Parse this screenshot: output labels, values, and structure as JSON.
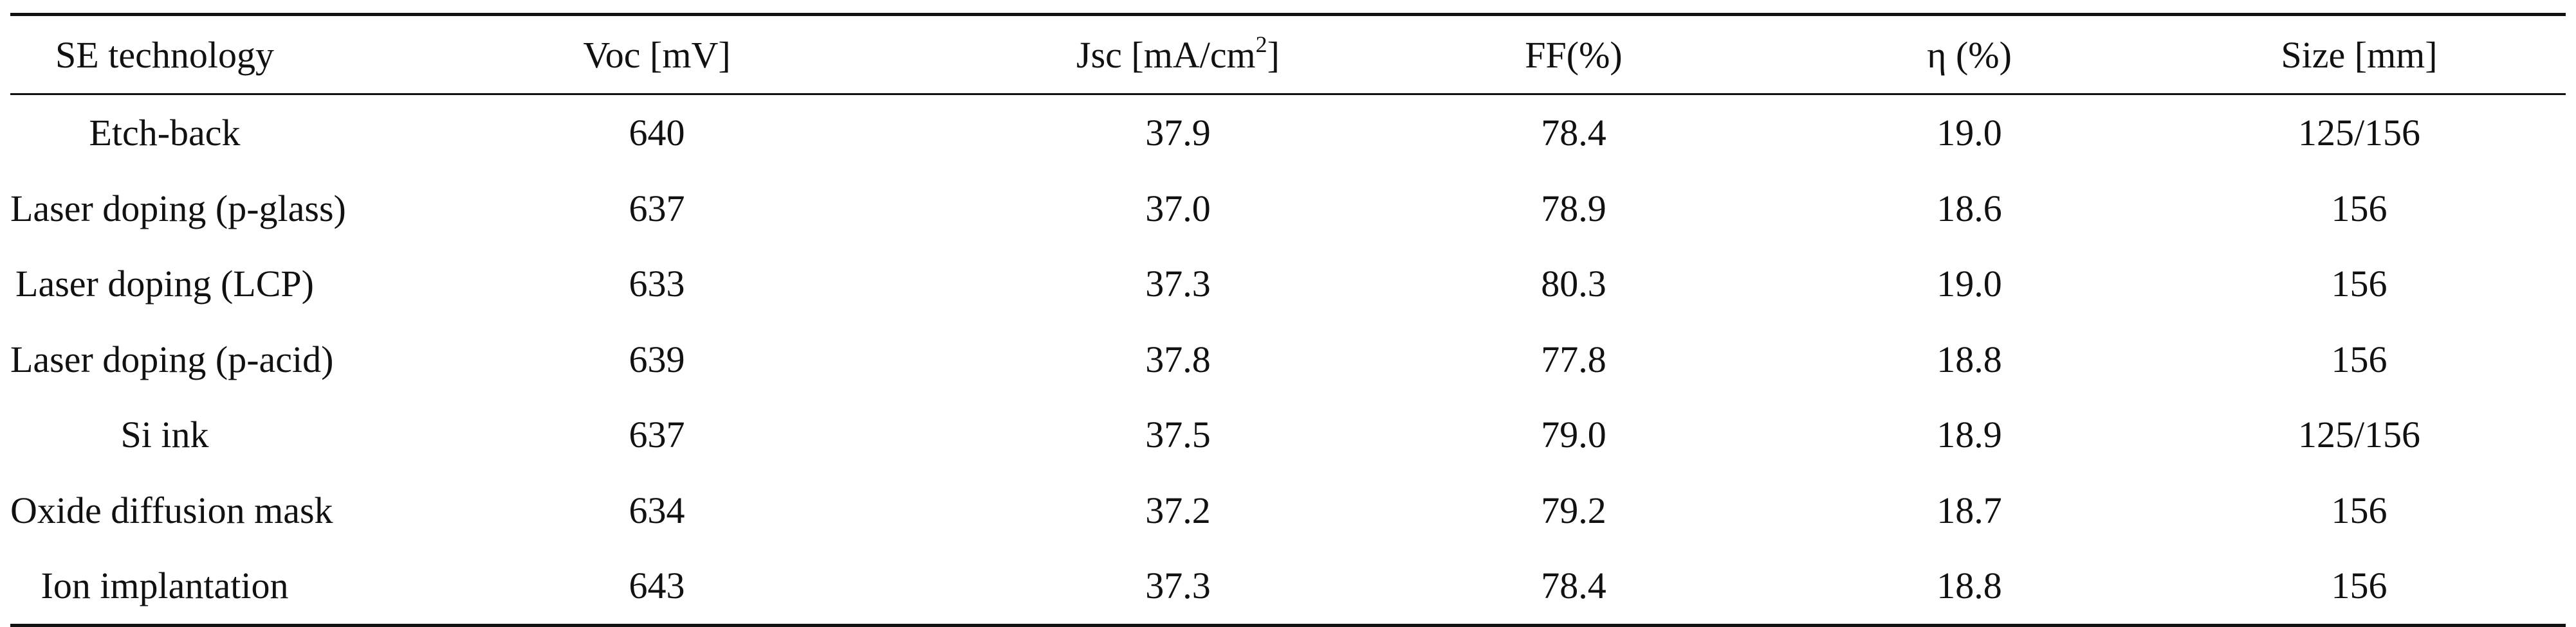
{
  "table": {
    "headers": [
      {
        "id": "se-technology",
        "label": "SE technology"
      },
      {
        "id": "voc",
        "label": "Voc [mV]"
      },
      {
        "id": "jsc",
        "label": "Jsc [mA/cm",
        "sup": "2",
        "suffix": "]"
      },
      {
        "id": "ff",
        "label": "FF(%)"
      },
      {
        "id": "eta",
        "label": "η (%)"
      },
      {
        "id": "size",
        "label": "Size [mm]"
      }
    ],
    "rows": [
      [
        "Etch-back",
        "640",
        "37.9",
        "78.4",
        "19.0",
        "125/156"
      ],
      [
        "Laser doping (p-glass)",
        "637",
        "37.0",
        "78.9",
        "18.6",
        "156"
      ],
      [
        "Laser doping (LCP)",
        "633",
        "37.3",
        "80.3",
        "19.0",
        "156"
      ],
      [
        "Laser doping (p-acid)",
        "639",
        "37.8",
        "77.8",
        "18.8",
        "156"
      ],
      [
        "Si ink",
        "637",
        "37.5",
        "79.0",
        "18.9",
        "125/156"
      ],
      [
        "Oxide diffusion mask",
        "634",
        "37.2",
        "79.2",
        "18.7",
        "156"
      ],
      [
        "Ion implantation",
        "643",
        "37.3",
        "78.4",
        "18.8",
        "156"
      ]
    ]
  }
}
